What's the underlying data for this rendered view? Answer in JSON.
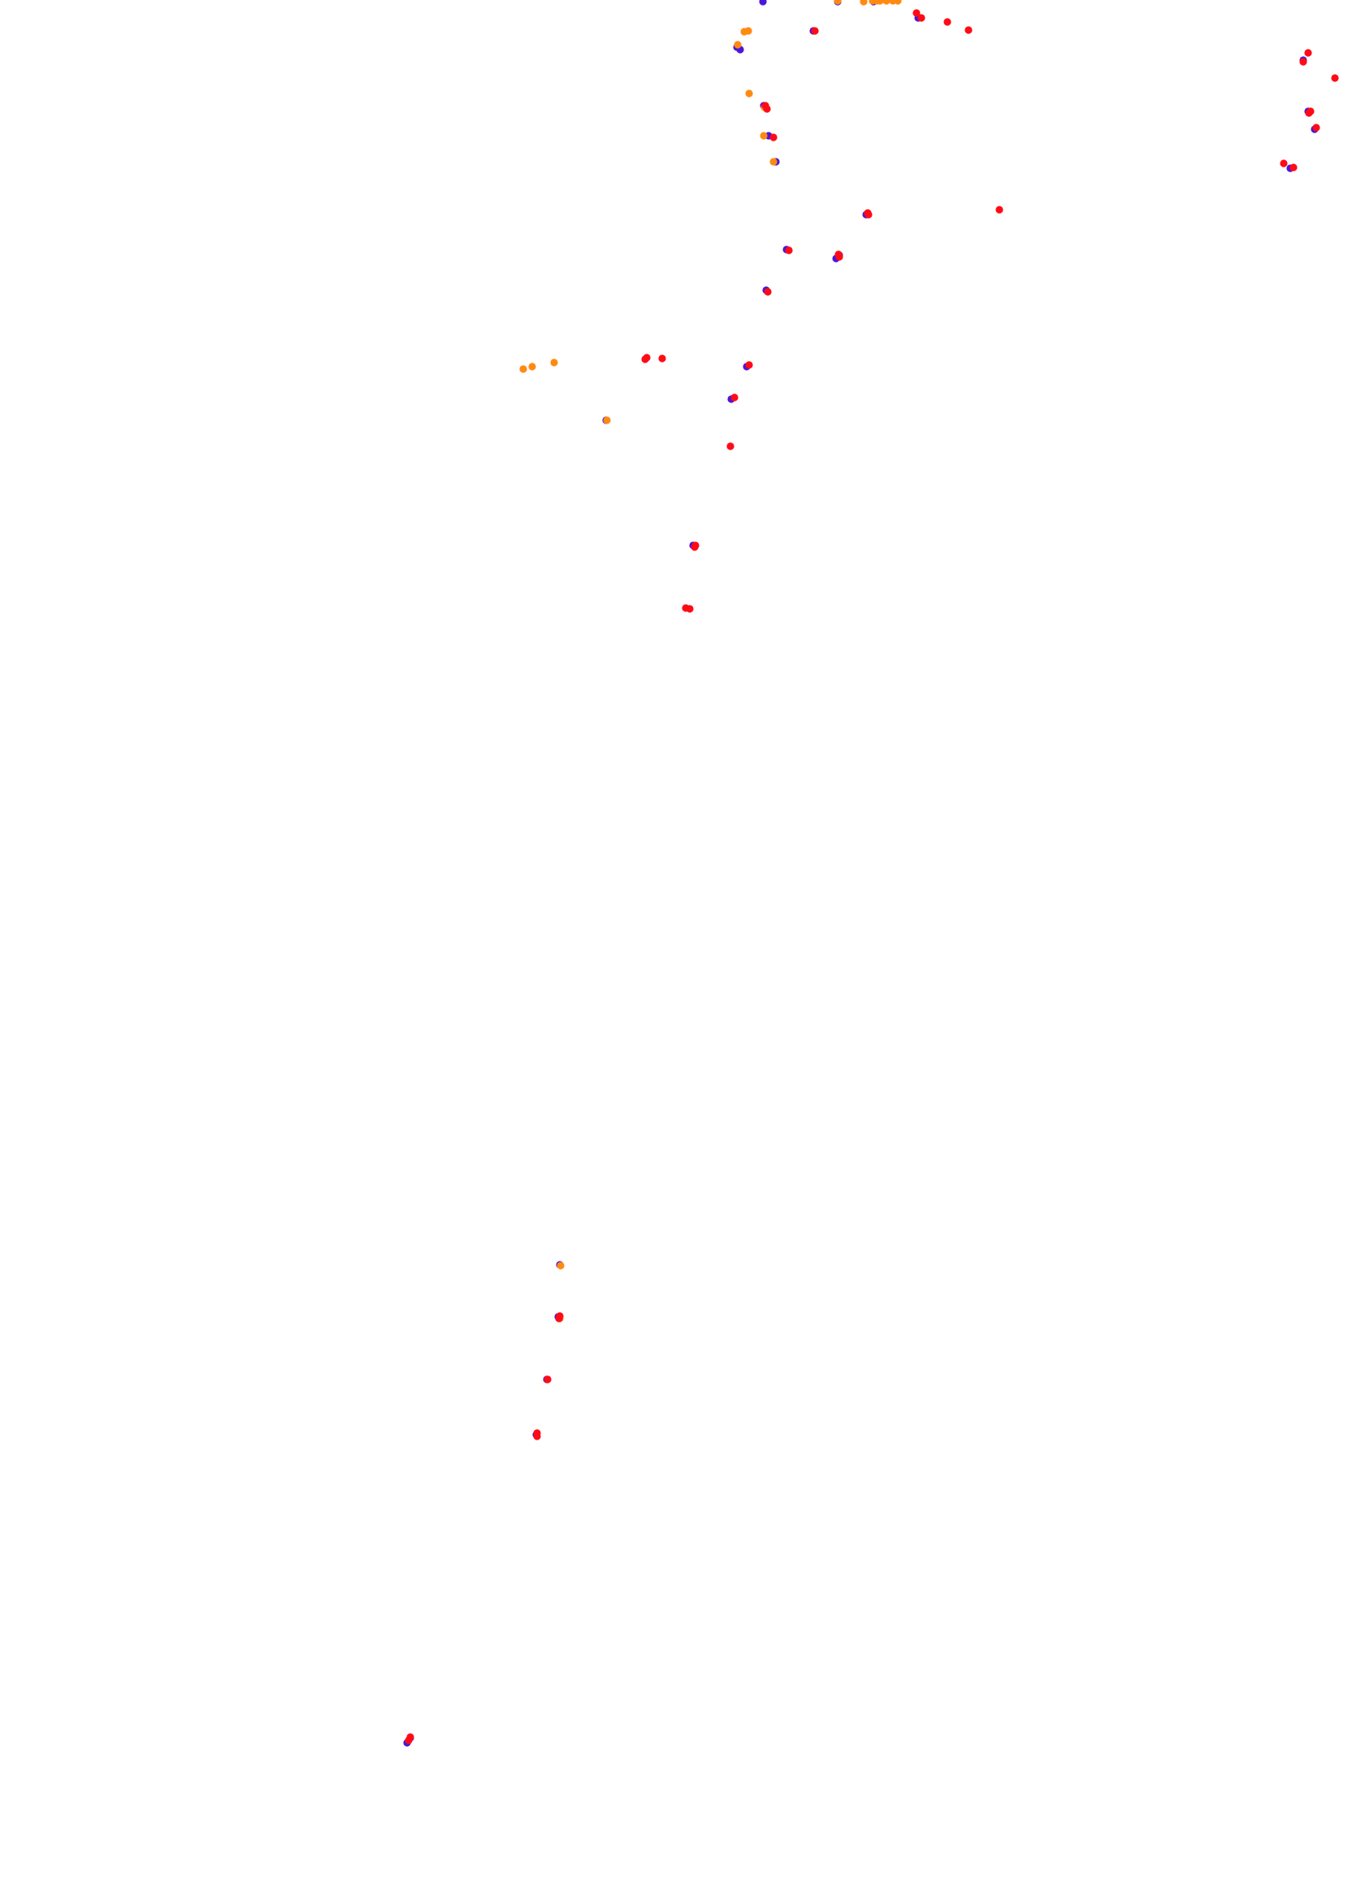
{
  "colors": {
    "background": "#ffffff",
    "blue": "#4b16d8",
    "red": "#ff0b17",
    "orange": "#ff8a12"
  },
  "legend": [],
  "marker_groups": {
    "blue": {
      "color": "#4b16d8",
      "count": 29
    },
    "red": {
      "color": "#ff0b17",
      "count": 40
    },
    "orange": {
      "color": "#ff8a12",
      "count": 22
    }
  }
}
